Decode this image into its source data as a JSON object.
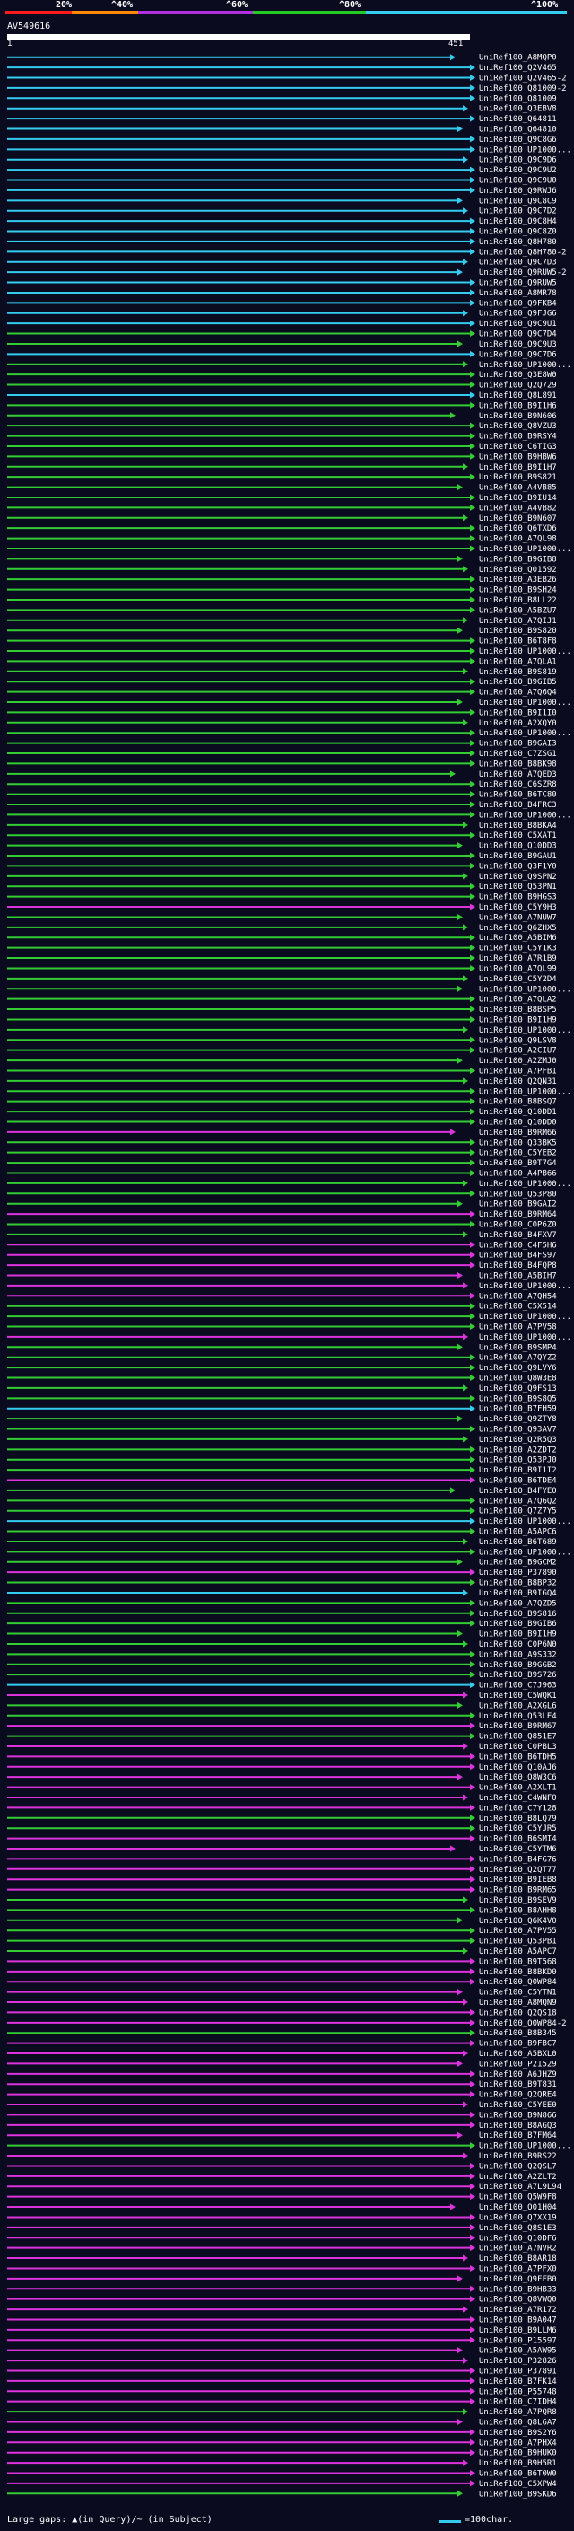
{
  "scale": {
    "labels": [
      "20%",
      "^40%",
      "^60%",
      "^80%",
      "^100%"
    ],
    "colors": [
      "#ff1a1a",
      "#ff8800",
      "#b030e0",
      "#22cc22",
      "#33ccee"
    ]
  },
  "query": {
    "name": "AV549616",
    "start": "1",
    "end": "451"
  },
  "palette": {
    "cyan": "#33ccee",
    "green": "#33cc33",
    "magenta": "#dd33dd"
  },
  "hits": [
    {
      "label": "UniRef100_A8MQP0",
      "c": "cyan"
    },
    {
      "label": "UniRef100_Q2V465",
      "c": "cyan"
    },
    {
      "label": "UniRef100_Q2V465-2",
      "c": "cyan"
    },
    {
      "label": "UniRef100_Q81009-2",
      "c": "cyan"
    },
    {
      "label": "UniRef100_Q81009",
      "c": "cyan"
    },
    {
      "label": "UniRef100_Q3EBV8",
      "c": "cyan"
    },
    {
      "label": "UniRef100_Q64811",
      "c": "cyan"
    },
    {
      "label": "UniRef100_Q64810",
      "c": "cyan"
    },
    {
      "label": "UniRef100_Q9C8G6",
      "c": "cyan"
    },
    {
      "label": "UniRef100_UP1000...",
      "c": "cyan"
    },
    {
      "label": "UniRef100_Q9C9D6",
      "c": "cyan"
    },
    {
      "label": "UniRef100_Q9C9U2",
      "c": "cyan"
    },
    {
      "label": "UniRef100_Q9C9U0",
      "c": "cyan"
    },
    {
      "label": "UniRef100_Q9RWJ6",
      "c": "cyan"
    },
    {
      "label": "UniRef100_Q9C8C9",
      "c": "cyan"
    },
    {
      "label": "UniRef100_Q9C7D2",
      "c": "cyan"
    },
    {
      "label": "UniRef100_Q9C8H4",
      "c": "cyan"
    },
    {
      "label": "UniRef100_Q9C8Z0",
      "c": "cyan"
    },
    {
      "label": "UniRef100_Q8H780",
      "c": "cyan"
    },
    {
      "label": "UniRef100_Q8H780-2",
      "c": "cyan"
    },
    {
      "label": "UniRef100_Q9C7D3",
      "c": "cyan"
    },
    {
      "label": "UniRef100_Q9RUW5-2",
      "c": "cyan"
    },
    {
      "label": "UniRef100_Q9RUW5",
      "c": "cyan"
    },
    {
      "label": "UniRef100_A8MR78",
      "c": "cyan"
    },
    {
      "label": "UniRef100_Q9FKB4",
      "c": "cyan"
    },
    {
      "label": "UniRef100_Q9FJG6",
      "c": "cyan"
    },
    {
      "label": "UniRef100_Q9C9U1",
      "c": "cyan"
    },
    {
      "label": "UniRef100_Q9C7D4",
      "c": "green"
    },
    {
      "label": "UniRef100_Q9C9U3",
      "c": "green"
    },
    {
      "label": "UniRef100_Q9C7D6",
      "c": "cyan"
    },
    {
      "label": "UniRef100_UP1000...",
      "c": "green"
    },
    {
      "label": "UniRef100_Q3E8W0",
      "c": "green"
    },
    {
      "label": "UniRef100_Q2Q729",
      "c": "green"
    },
    {
      "label": "UniRef100_Q8L891",
      "c": "cyan"
    },
    {
      "label": "UniRef100_B9I1H6",
      "c": "green"
    },
    {
      "label": "UniRef100_B9N606",
      "c": "green"
    },
    {
      "label": "UniRef100_Q8VZU3",
      "c": "green"
    },
    {
      "label": "UniRef100_B9RSY4",
      "c": "green"
    },
    {
      "label": "UniRef100_C6TIG3",
      "c": "green"
    },
    {
      "label": "UniRef100_B9HBW6",
      "c": "green"
    },
    {
      "label": "UniRef100_B9I1H7",
      "c": "green"
    },
    {
      "label": "UniRef100_B9S821",
      "c": "green"
    },
    {
      "label": "UniRef100_A4VB85",
      "c": "green"
    },
    {
      "label": "UniRef100_B9IU14",
      "c": "green"
    },
    {
      "label": "UniRef100_A4VB82",
      "c": "green"
    },
    {
      "label": "UniRef100_B9N607",
      "c": "green"
    },
    {
      "label": "UniRef100_Q6TXD6",
      "c": "green"
    },
    {
      "label": "UniRef100_A7QL98",
      "c": "green"
    },
    {
      "label": "UniRef100_UP1000...",
      "c": "green"
    },
    {
      "label": "UniRef100_B9GIB8",
      "c": "green"
    },
    {
      "label": "UniRef100_Q01592",
      "c": "green"
    },
    {
      "label": "UniRef100_A3EB26",
      "c": "green"
    },
    {
      "label": "UniRef100_B9SH24",
      "c": "green"
    },
    {
      "label": "UniRef100_B8LL22",
      "c": "green"
    },
    {
      "label": "UniRef100_A5BZU7",
      "c": "green"
    },
    {
      "label": "UniRef100_A7QIJ1",
      "c": "green"
    },
    {
      "label": "UniRef100_B9S820",
      "c": "green"
    },
    {
      "label": "UniRef100_B6T8F8",
      "c": "green"
    },
    {
      "label": "UniRef100_UP1000...",
      "c": "green"
    },
    {
      "label": "UniRef100_A7QLA1",
      "c": "green"
    },
    {
      "label": "UniRef100_B9S819",
      "c": "green"
    },
    {
      "label": "UniRef100_B9GIB5",
      "c": "green"
    },
    {
      "label": "UniRef100_A7Q6Q4",
      "c": "green"
    },
    {
      "label": "UniRef100_UP1000...",
      "c": "green"
    },
    {
      "label": "UniRef100_B9I1I0",
      "c": "green"
    },
    {
      "label": "UniRef100_A2XQY0",
      "c": "green"
    },
    {
      "label": "UniRef100_UP1000...",
      "c": "green"
    },
    {
      "label": "UniRef100_B9GAI3",
      "c": "green"
    },
    {
      "label": "UniRef100_C7ZSG1",
      "c": "green"
    },
    {
      "label": "UniRef100_B8BK98",
      "c": "green"
    },
    {
      "label": "UniRef100_A7QED3",
      "c": "green"
    },
    {
      "label": "UniRef100_C6SZR8",
      "c": "green"
    },
    {
      "label": "UniRef100_B6TC80",
      "c": "green"
    },
    {
      "label": "UniRef100_B4FRC3",
      "c": "green"
    },
    {
      "label": "UniRef100_UP1000...",
      "c": "green"
    },
    {
      "label": "UniRef100_B8BKA4",
      "c": "green"
    },
    {
      "label": "UniRef100_C5XAT1",
      "c": "green"
    },
    {
      "label": "UniRef100_Q10DD3",
      "c": "green"
    },
    {
      "label": "UniRef100_B9GAU1",
      "c": "green"
    },
    {
      "label": "UniRef100_Q3F1Y0",
      "c": "green"
    },
    {
      "label": "UniRef100_Q9SPN2",
      "c": "green"
    },
    {
      "label": "UniRef100_Q53PN1",
      "c": "green"
    },
    {
      "label": "UniRef100_B9HGS3",
      "c": "green"
    },
    {
      "label": "UniRef100_C5Y9H3",
      "c": "magenta"
    },
    {
      "label": "UniRef100_A7NUW7",
      "c": "green"
    },
    {
      "label": "UniRef100_Q6ZHX5",
      "c": "green"
    },
    {
      "label": "UniRef100_A5BIM6",
      "c": "green"
    },
    {
      "label": "UniRef100_C5Y1K3",
      "c": "green"
    },
    {
      "label": "UniRef100_A7R1B9",
      "c": "green"
    },
    {
      "label": "UniRef100_A7QL99",
      "c": "green"
    },
    {
      "label": "UniRef100_C5Y2D4",
      "c": "green"
    },
    {
      "label": "UniRef100_UP1000...",
      "c": "green"
    },
    {
      "label": "UniRef100_A7QLA2",
      "c": "green"
    },
    {
      "label": "UniRef100_B8BSP5",
      "c": "green"
    },
    {
      "label": "UniRef100_B9I1H9",
      "c": "green"
    },
    {
      "label": "UniRef100_UP1000...",
      "c": "green"
    },
    {
      "label": "UniRef100_Q9LSV8",
      "c": "green"
    },
    {
      "label": "UniRef100_A2CIU7",
      "c": "green"
    },
    {
      "label": "UniRef100_A2ZMJ0",
      "c": "green"
    },
    {
      "label": "UniRef100_A7PFB1",
      "c": "green"
    },
    {
      "label": "UniRef100_Q2QN31",
      "c": "green"
    },
    {
      "label": "UniRef100_UP1000...",
      "c": "green"
    },
    {
      "label": "UniRef100_B8BSQ7",
      "c": "green"
    },
    {
      "label": "UniRef100_Q10DD1",
      "c": "green"
    },
    {
      "label": "UniRef100_Q10DD0",
      "c": "green"
    },
    {
      "label": "UniRef100_B9RM66",
      "c": "magenta"
    },
    {
      "label": "UniRef100_Q33BK5",
      "c": "green"
    },
    {
      "label": "UniRef100_C5YEB2",
      "c": "green"
    },
    {
      "label": "UniRef100_B9T7G4",
      "c": "green"
    },
    {
      "label": "UniRef100_A4PB66",
      "c": "green"
    },
    {
      "label": "UniRef100_UP1000...",
      "c": "green"
    },
    {
      "label": "UniRef100_Q53P80",
      "c": "green"
    },
    {
      "label": "UniRef100_B9GAI2",
      "c": "green"
    },
    {
      "label": "UniRef100_B9RM64",
      "c": "magenta"
    },
    {
      "label": "UniRef100_C0P6Z0",
      "c": "green"
    },
    {
      "label": "UniRef100_B4FXV7",
      "c": "green"
    },
    {
      "label": "UniRef100_C4F5H6",
      "c": "magenta"
    },
    {
      "label": "UniRef100_B4FS97",
      "c": "magenta"
    },
    {
      "label": "UniRef100_B4FQP8",
      "c": "magenta"
    },
    {
      "label": "UniRef100_A5BIH7",
      "c": "magenta"
    },
    {
      "label": "UniRef100_UP1000...",
      "c": "magenta"
    },
    {
      "label": "UniRef100_A7QH54",
      "c": "magenta"
    },
    {
      "label": "UniRef100_C5X514",
      "c": "green"
    },
    {
      "label": "UniRef100_UP1000...",
      "c": "green"
    },
    {
      "label": "UniRef100_A7PV58",
      "c": "green"
    },
    {
      "label": "UniRef100_UP1000...",
      "c": "magenta"
    },
    {
      "label": "UniRef100_B9SMP4",
      "c": "green"
    },
    {
      "label": "UniRef100_A7QYZ2",
      "c": "green"
    },
    {
      "label": "UniRef100_Q9LVY6",
      "c": "green"
    },
    {
      "label": "UniRef100_Q8W3E8",
      "c": "green"
    },
    {
      "label": "UniRef100_Q9FS13",
      "c": "green"
    },
    {
      "label": "UniRef100_B9S8Q5",
      "c": "green"
    },
    {
      "label": "UniRef100_B7FH59",
      "c": "cyan"
    },
    {
      "label": "UniRef100_Q9ZTY8",
      "c": "green"
    },
    {
      "label": "UniRef100_Q93AV7",
      "c": "green"
    },
    {
      "label": "UniRef100_Q2R5Q3",
      "c": "green"
    },
    {
      "label": "UniRef100_A2ZDT2",
      "c": "green"
    },
    {
      "label": "UniRef100_Q53PJ0",
      "c": "green"
    },
    {
      "label": "UniRef100_B9I1I2",
      "c": "green"
    },
    {
      "label": "UniRef100_B6TDE4",
      "c": "magenta"
    },
    {
      "label": "UniRef100_B4FYE0",
      "c": "green"
    },
    {
      "label": "UniRef100_A7Q6Q2",
      "c": "green"
    },
    {
      "label": "UniRef100_Q7Z7Y5",
      "c": "green"
    },
    {
      "label": "UniRef100_UP1000...",
      "c": "cyan"
    },
    {
      "label": "UniRef100_A5APC6",
      "c": "green"
    },
    {
      "label": "UniRef100_B6T689",
      "c": "green"
    },
    {
      "label": "UniRef100_UP1000...",
      "c": "green"
    },
    {
      "label": "UniRef100_B9GCM2",
      "c": "green"
    },
    {
      "label": "UniRef100_P37890",
      "c": "magenta"
    },
    {
      "label": "UniRef100_B8BP32",
      "c": "green"
    },
    {
      "label": "UniRef100_B9IGQ4",
      "c": "cyan"
    },
    {
      "label": "UniRef100_A7QZD5",
      "c": "green"
    },
    {
      "label": "UniRef100_B9S816",
      "c": "green"
    },
    {
      "label": "UniRef100_B9GIB6",
      "c": "green"
    },
    {
      "label": "UniRef100_B9I1H9",
      "c": "green"
    },
    {
      "label": "UniRef100_C0P6N0",
      "c": "green"
    },
    {
      "label": "UniRef100_A9S332",
      "c": "green"
    },
    {
      "label": "UniRef100_B9GGB2",
      "c": "green"
    },
    {
      "label": "UniRef100_B9S726",
      "c": "green"
    },
    {
      "label": "UniRef100_C7J963",
      "c": "cyan"
    },
    {
      "label": "UniRef100_C5WQK1",
      "c": "magenta"
    },
    {
      "label": "UniRef100_A2XGL6",
      "c": "green"
    },
    {
      "label": "UniRef100_Q53LE4",
      "c": "green"
    },
    {
      "label": "UniRef100_B9RM67",
      "c": "magenta"
    },
    {
      "label": "UniRef100_Q851E7",
      "c": "green"
    },
    {
      "label": "UniRef100_C0PBL3",
      "c": "magenta"
    },
    {
      "label": "UniRef100_B6TDH5",
      "c": "magenta"
    },
    {
      "label": "UniRef100_Q10AJ6",
      "c": "magenta"
    },
    {
      "label": "UniRef100_Q8W3C6",
      "c": "magenta"
    },
    {
      "label": "UniRef100_A2XLT1",
      "c": "magenta"
    },
    {
      "label": "UniRef100_C4WNF0",
      "c": "magenta"
    },
    {
      "label": "UniRef100_C7Y128",
      "c": "magenta"
    },
    {
      "label": "UniRef100_B8LQ79",
      "c": "green"
    },
    {
      "label": "UniRef100_C5YJR5",
      "c": "green"
    },
    {
      "label": "UniRef100_B6SMI4",
      "c": "magenta"
    },
    {
      "label": "UniRef100_C5YTM6",
      "c": "magenta"
    },
    {
      "label": "UniRef100_B4FG76",
      "c": "magenta"
    },
    {
      "label": "UniRef100_Q2QT77",
      "c": "magenta"
    },
    {
      "label": "UniRef100_B9IEB8",
      "c": "magenta"
    },
    {
      "label": "UniRef100_B9RM65",
      "c": "magenta"
    },
    {
      "label": "UniRef100_B9SEV9",
      "c": "green"
    },
    {
      "label": "UniRef100_B8AHH8",
      "c": "green"
    },
    {
      "label": "UniRef100_Q6K4V0",
      "c": "green"
    },
    {
      "label": "UniRef100_A7PV55",
      "c": "green"
    },
    {
      "label": "UniRef100_Q53PB1",
      "c": "green"
    },
    {
      "label": "UniRef100_A5APC7",
      "c": "green"
    },
    {
      "label": "UniRef100_B9T568",
      "c": "magenta"
    },
    {
      "label": "UniRef100_B8BKD0",
      "c": "magenta"
    },
    {
      "label": "UniRef100_Q0WP84",
      "c": "magenta"
    },
    {
      "label": "UniRef100_C5YTN1",
      "c": "magenta"
    },
    {
      "label": "UniRef100_A8MQN9",
      "c": "magenta"
    },
    {
      "label": "UniRef100_Q2QS18",
      "c": "magenta"
    },
    {
      "label": "UniRef100_Q0WP84-2",
      "c": "magenta"
    },
    {
      "label": "UniRef100_B8B345",
      "c": "green"
    },
    {
      "label": "UniRef100_B9FBC7",
      "c": "magenta"
    },
    {
      "label": "UniRef100_A5BXL0",
      "c": "magenta"
    },
    {
      "label": "UniRef100_P21529",
      "c": "magenta"
    },
    {
      "label": "UniRef100_A6JHZ9",
      "c": "magenta"
    },
    {
      "label": "UniRef100_B9T831",
      "c": "magenta"
    },
    {
      "label": "UniRef100_Q2QRE4",
      "c": "magenta"
    },
    {
      "label": "UniRef100_C5YEE0",
      "c": "magenta"
    },
    {
      "label": "UniRef100_B9N866",
      "c": "magenta"
    },
    {
      "label": "UniRef100_B8AGQ3",
      "c": "magenta"
    },
    {
      "label": "UniRef100_B7FM64",
      "c": "magenta"
    },
    {
      "label": "UniRef100_UP1000...",
      "c": "green"
    },
    {
      "label": "UniRef100_B9RS22",
      "c": "magenta"
    },
    {
      "label": "UniRef100_Q2QSL7",
      "c": "magenta"
    },
    {
      "label": "UniRef100_A2ZLT2",
      "c": "magenta"
    },
    {
      "label": "UniRef100_A7L9L94",
      "c": "magenta"
    },
    {
      "label": "UniRef100_Q5W9F8",
      "c": "magenta"
    },
    {
      "label": "UniRef100_Q01H04",
      "c": "magenta"
    },
    {
      "label": "UniRef100_Q7XX19",
      "c": "magenta"
    },
    {
      "label": "UniRef100_Q8S1E3",
      "c": "magenta"
    },
    {
      "label": "UniRef100_Q10DF6",
      "c": "magenta"
    },
    {
      "label": "UniRef100_A7NVR2",
      "c": "magenta"
    },
    {
      "label": "UniRef100_B8AR18",
      "c": "magenta"
    },
    {
      "label": "UniRef100_A7PFX0",
      "c": "magenta"
    },
    {
      "label": "UniRef100_Q9FFB0",
      "c": "magenta"
    },
    {
      "label": "UniRef100_B9HB33",
      "c": "magenta"
    },
    {
      "label": "UniRef100_Q8VWQ0",
      "c": "magenta"
    },
    {
      "label": "UniRef100_A7R172",
      "c": "magenta"
    },
    {
      "label": "UniRef100_B9A047",
      "c": "magenta"
    },
    {
      "label": "UniRef100_B9LLM6",
      "c": "magenta"
    },
    {
      "label": "UniRef100_P15597",
      "c": "magenta"
    },
    {
      "label": "UniRef100_A5AW95",
      "c": "magenta"
    },
    {
      "label": "UniRef100_P32826",
      "c": "magenta"
    },
    {
      "label": "UniRef100_P37891",
      "c": "magenta"
    },
    {
      "label": "UniRef100_B7FK14",
      "c": "magenta"
    },
    {
      "label": "UniRef100_P55748",
      "c": "magenta"
    },
    {
      "label": "UniRef100_C7IDH4",
      "c": "magenta"
    },
    {
      "label": "UniRef100_A7PQR8",
      "c": "green"
    },
    {
      "label": "UniRef100_Q8L6A7",
      "c": "magenta"
    },
    {
      "label": "UniRef100_B9S2Y6",
      "c": "magenta"
    },
    {
      "label": "UniRef100_A7PHX4",
      "c": "magenta"
    },
    {
      "label": "UniRef100_B9HUK0",
      "c": "magenta"
    },
    {
      "label": "UniRef100_B9H5R1",
      "c": "magenta"
    },
    {
      "label": "UniRef100_B6T0W0",
      "c": "magenta"
    },
    {
      "label": "UniRef100_C5XPW4",
      "c": "magenta"
    },
    {
      "label": "UniRef100_B9SKD6",
      "c": "green"
    }
  ],
  "legend": {
    "gaps_text": "Large gaps: ▲(in Query)/~ (in Subject)",
    "scale_text": "=100char."
  }
}
